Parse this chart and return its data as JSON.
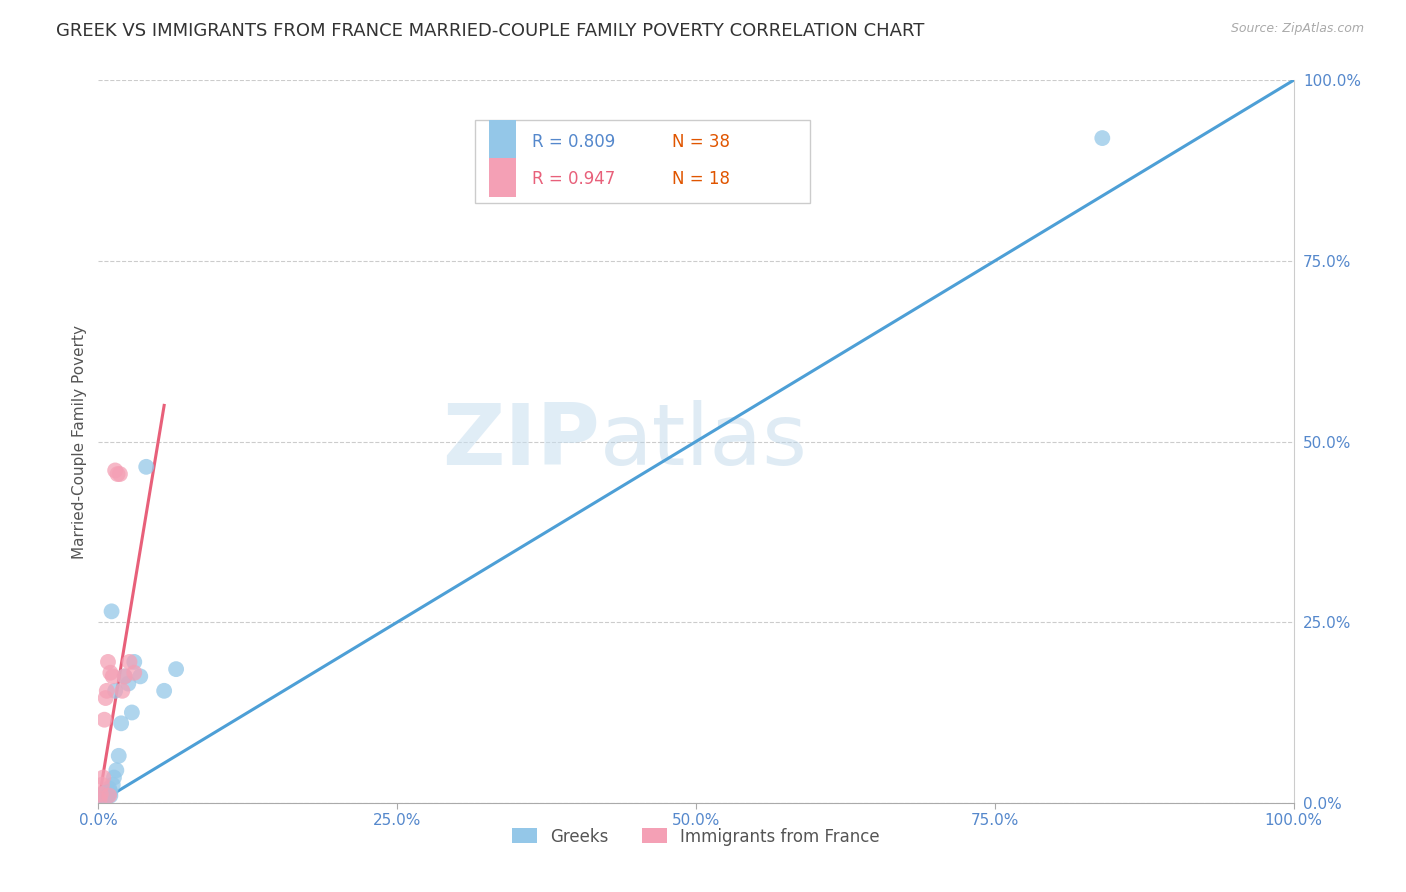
{
  "title": "GREEK VS IMMIGRANTS FROM FRANCE MARRIED-COUPLE FAMILY POVERTY CORRELATION CHART",
  "source": "Source: ZipAtlas.com",
  "ylabel": "Married-Couple Family Poverty",
  "xlim": [
    0,
    1.0
  ],
  "ylim": [
    0,
    1.0
  ],
  "xticks": [
    0.0,
    0.25,
    0.5,
    0.75,
    1.0
  ],
  "yticks": [
    0.0,
    0.25,
    0.5,
    0.75,
    1.0
  ],
  "xtick_labels": [
    "0.0%",
    "25.0%",
    "50.0%",
    "75.0%",
    "100.0%"
  ],
  "ytick_labels": [
    "0.0%",
    "25.0%",
    "50.0%",
    "75.0%",
    "100.0%"
  ],
  "greeks_color": "#94c7e8",
  "france_color": "#f4a0b5",
  "greeks_line_color": "#4d9fd6",
  "france_line_color": "#e8607a",
  "diagonal_color": "#cccccc",
  "R_greeks": 0.809,
  "N_greeks": 38,
  "R_france": 0.947,
  "N_france": 18,
  "legend_label_greeks": "Greeks",
  "legend_label_france": "Immigrants from France",
  "watermark_zip": "ZIP",
  "watermark_atlas": "atlas",
  "title_fontsize": 13,
  "axis_label_fontsize": 11,
  "tick_fontsize": 11,
  "greeks_x": [
    0.001,
    0.002,
    0.002,
    0.002,
    0.003,
    0.003,
    0.003,
    0.004,
    0.004,
    0.004,
    0.005,
    0.005,
    0.005,
    0.006,
    0.006,
    0.007,
    0.007,
    0.008,
    0.008,
    0.009,
    0.01,
    0.01,
    0.011,
    0.012,
    0.013,
    0.014,
    0.015,
    0.017,
    0.019,
    0.022,
    0.025,
    0.028,
    0.03,
    0.035,
    0.04,
    0.055,
    0.065,
    0.84
  ],
  "greeks_y": [
    0.005,
    0.005,
    0.008,
    0.01,
    0.005,
    0.008,
    0.01,
    0.005,
    0.008,
    0.012,
    0.005,
    0.008,
    0.01,
    0.005,
    0.01,
    0.008,
    0.015,
    0.01,
    0.015,
    0.02,
    0.01,
    0.015,
    0.265,
    0.025,
    0.035,
    0.155,
    0.045,
    0.065,
    0.11,
    0.175,
    0.165,
    0.125,
    0.195,
    0.175,
    0.465,
    0.155,
    0.185,
    0.92
  ],
  "france_x": [
    0.001,
    0.002,
    0.003,
    0.004,
    0.005,
    0.006,
    0.007,
    0.008,
    0.009,
    0.01,
    0.012,
    0.014,
    0.016,
    0.018,
    0.02,
    0.022,
    0.026,
    0.03
  ],
  "france_y": [
    0.005,
    0.012,
    0.025,
    0.035,
    0.115,
    0.145,
    0.155,
    0.195,
    0.01,
    0.18,
    0.175,
    0.46,
    0.455,
    0.455,
    0.155,
    0.175,
    0.195,
    0.18
  ],
  "blue_line_x0": 0.0,
  "blue_line_y0": 0.0,
  "blue_line_x1": 1.0,
  "blue_line_y1": 1.0,
  "pink_line_x0": 0.0,
  "pink_line_y0": 0.0,
  "pink_line_x1": 0.055,
  "pink_line_y1": 0.55
}
